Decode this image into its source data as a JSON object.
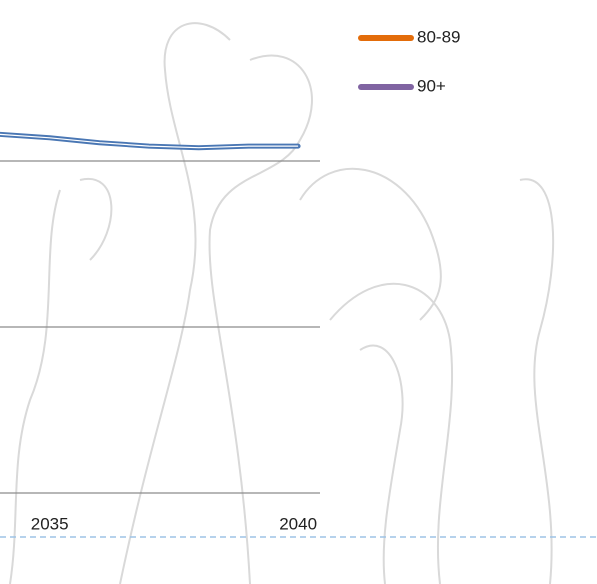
{
  "chart_data": {
    "type": "line",
    "x": [
      2034,
      2035,
      2036,
      2037,
      2038,
      2039,
      2040
    ],
    "series": [
      {
        "color": "#4a77b4",
        "values": [
          2.16,
          2.14,
          2.11,
          2.09,
          2.08,
          2.09,
          2.09
        ]
      }
    ],
    "legend": [
      {
        "name": "80-89",
        "color": "#e36c0a"
      },
      {
        "name": "90+",
        "color": "#8064a2"
      }
    ],
    "xlim": [
      2034,
      2040.44
    ],
    "xticks": [
      2035,
      2040
    ],
    "ylim": [
      0,
      3
    ],
    "yticks": [
      0,
      1,
      2
    ],
    "grid": true
  }
}
